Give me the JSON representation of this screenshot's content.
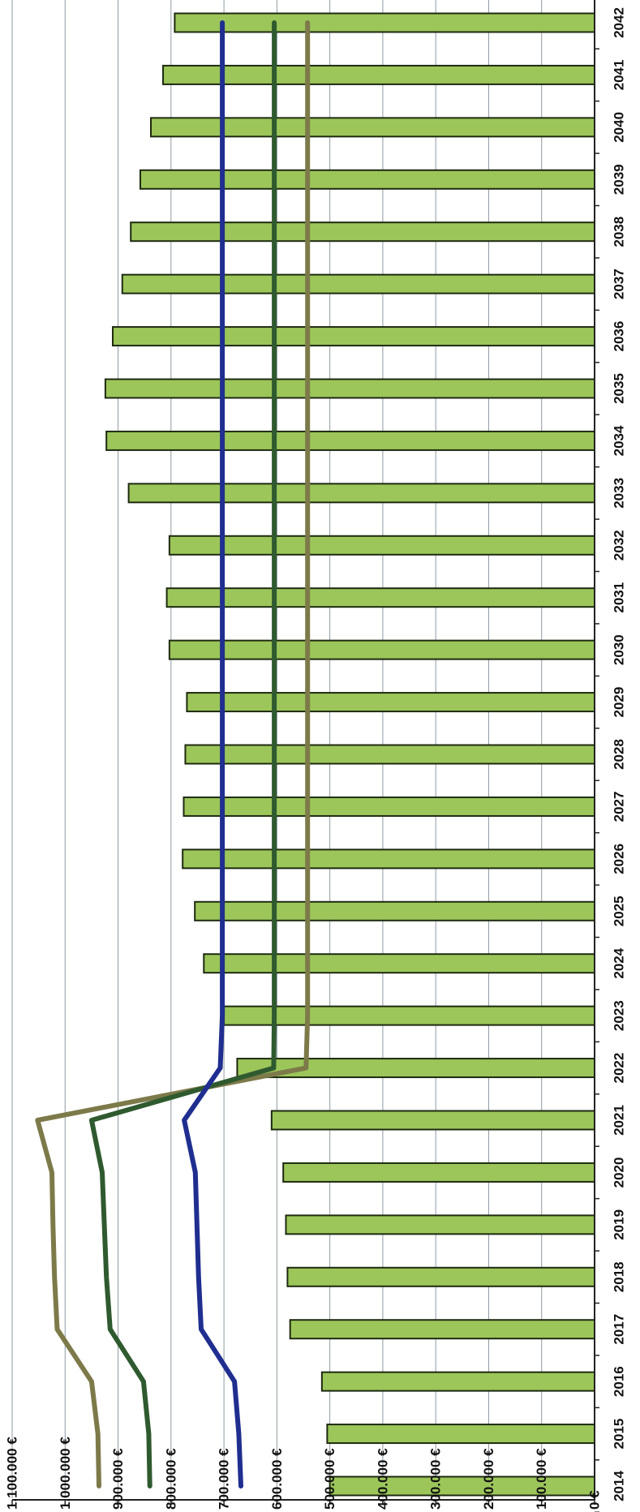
{
  "chart_data": {
    "type": "bar",
    "orientation": "rotated-90",
    "title": "",
    "xlabel": "",
    "ylabel": "",
    "categories": [
      "2014",
      "2015",
      "2016",
      "2017",
      "2018",
      "2019",
      "2020",
      "2021",
      "2022",
      "2023",
      "2024",
      "2025",
      "2026",
      "2027",
      "2028",
      "2029",
      "2030",
      "2031",
      "2032",
      "2033",
      "2034",
      "2035",
      "2036",
      "2037",
      "2038",
      "2039",
      "2040",
      "2041",
      "2042"
    ],
    "value_ticks": [
      {
        "value": 0,
        "label": "0 €"
      },
      {
        "value": 100000,
        "label": "100.000 €"
      },
      {
        "value": 200000,
        "label": "200.000 €"
      },
      {
        "value": 300000,
        "label": "300.000 €"
      },
      {
        "value": 400000,
        "label": "400.000 €"
      },
      {
        "value": 500000,
        "label": "500.000 €"
      },
      {
        "value": 600000,
        "label": "600.000 €"
      },
      {
        "value": 700000,
        "label": "700.000 €"
      },
      {
        "value": 800000,
        "label": "800.000 €"
      },
      {
        "value": 900000,
        "label": "900.000 €"
      },
      {
        "value": 1000000,
        "label": "1.000.000 €"
      },
      {
        "value": 1100000,
        "label": "1.100.000 €"
      }
    ],
    "ylim": [
      0,
      1100000
    ],
    "grid": true,
    "legend": "none",
    "bar_series": {
      "color": "#9cc65a",
      "values": [
        500000,
        505000,
        515000,
        575000,
        580000,
        583000,
        588000,
        610000,
        675000,
        700000,
        738000,
        755000,
        778000,
        776000,
        773000,
        770000,
        803000,
        808000,
        803000,
        880000,
        922000,
        924000,
        910000,
        892000,
        876000,
        858000,
        838000,
        815000,
        793000
      ]
    },
    "line_series": [
      {
        "color": "#7d7a4a",
        "values": [
          936000,
          938000,
          950000,
          1015000,
          1020000,
          1023000,
          1025000,
          1052000,
          545000,
          542000,
          542000,
          542000,
          542000,
          542000,
          542000,
          542000,
          542000,
          542000,
          542000,
          542000,
          542000,
          542000,
          542000,
          542000,
          542000,
          542000,
          542000,
          542000,
          542000
        ]
      },
      {
        "color": "#2f5a2f",
        "values": [
          840000,
          842000,
          852000,
          915000,
          922000,
          926000,
          930000,
          950000,
          606000,
          605000,
          605000,
          605000,
          605000,
          605000,
          605000,
          605000,
          605000,
          605000,
          605000,
          605000,
          605000,
          605000,
          605000,
          605000,
          605000,
          605000,
          605000,
          605000,
          605000
        ]
      },
      {
        "color": "#1f2e8f",
        "values": [
          668000,
          672000,
          680000,
          743000,
          748000,
          751000,
          754000,
          775000,
          707000,
          703000,
          703000,
          703000,
          703000,
          703000,
          703000,
          703000,
          703000,
          703000,
          703000,
          703000,
          703000,
          703000,
          703000,
          703000,
          703000,
          703000,
          703000,
          703000,
          703000
        ]
      }
    ]
  }
}
